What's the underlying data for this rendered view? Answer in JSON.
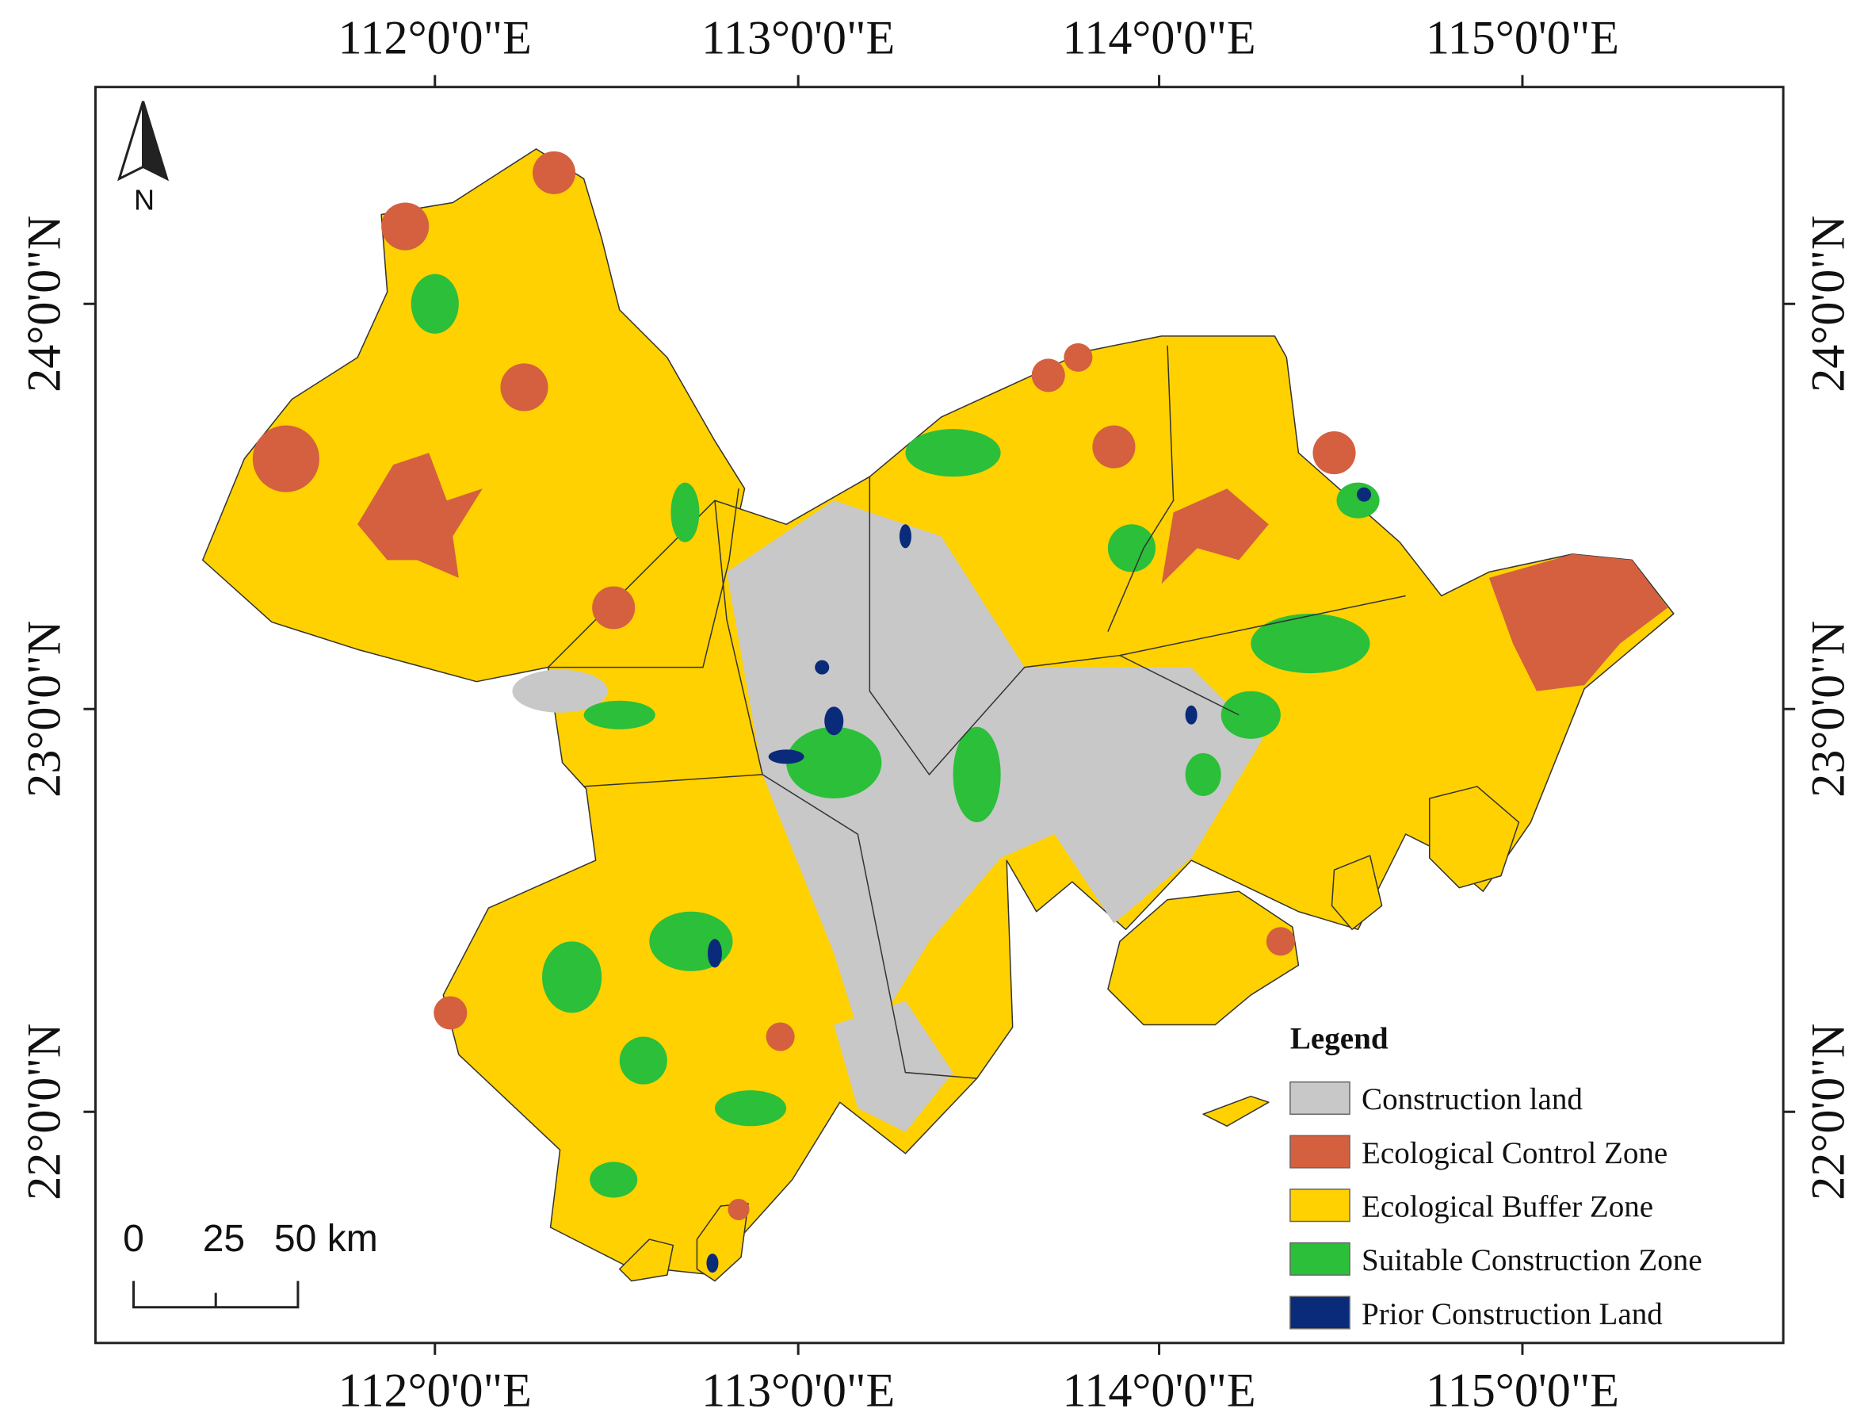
{
  "frame": {
    "top_labels": [
      "112°0'0\"E",
      "113°0'0\"E",
      "114°0'0\"E",
      "115°0'0\"E"
    ],
    "bottom_labels": [
      "112°0'0\"E",
      "113°0'0\"E",
      "114°0'0\"E",
      "115°0'0\"E"
    ],
    "left_labels": [
      "24°0'0\"N",
      "23°0'0\"N",
      "22°0'0\"N"
    ],
    "right_labels": [
      "24°0'0\"N",
      "23°0'0\"N",
      "22°0'0\"N"
    ]
  },
  "north_arrow": {
    "label": "N"
  },
  "scale_bar": {
    "labels": [
      "0",
      "25",
      "50 km"
    ]
  },
  "legend": {
    "title": "Legend",
    "items": [
      {
        "label": "Construction land",
        "color": "#c8c8c8"
      },
      {
        "label": "Ecological Control Zone",
        "color": "#d4603f"
      },
      {
        "label": "Ecological Buffer Zone",
        "color": "#ffd100"
      },
      {
        "label": "Suitable Construction Zone",
        "color": "#2bbf3a"
      },
      {
        "label": "Prior Construction Land",
        "color": "#0a2a7a"
      }
    ]
  }
}
